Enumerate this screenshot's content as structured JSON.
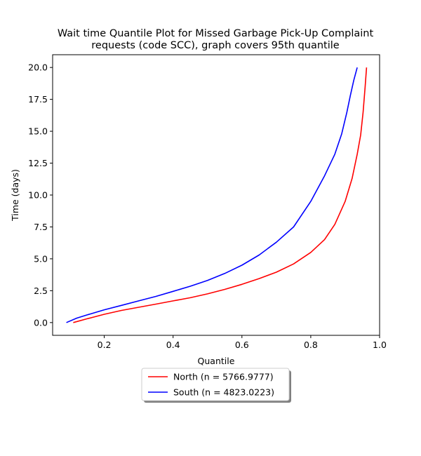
{
  "chart_data": {
    "type": "line",
    "title": "Wait time Quantile Plot for Missed Garbage Pick-Up Complaint",
    "subtitle": "requests (code SCC), graph covers 95th quantile",
    "xlabel": "Quantile",
    "ylabel": "Time (days)",
    "xlim": [
      0.05,
      1.0
    ],
    "ylim": [
      -1.0,
      21.0
    ],
    "xticks": [
      0.2,
      0.4,
      0.6,
      0.8,
      1.0
    ],
    "xtick_labels": [
      "0.2",
      "0.4",
      "0.6",
      "0.8",
      "1.0"
    ],
    "yticks": [
      0.0,
      2.5,
      5.0,
      7.5,
      10.0,
      12.5,
      15.0,
      17.5,
      20.0
    ],
    "ytick_labels": [
      "0.0",
      "2.5",
      "5.0",
      "7.5",
      "10.0",
      "12.5",
      "15.0",
      "17.5",
      "20.0"
    ],
    "grid": false,
    "legend_position": "below",
    "series": [
      {
        "name": "North (n = 5766.9777)",
        "color": "#ff0000",
        "x": [
          0.11,
          0.15,
          0.2,
          0.25,
          0.3,
          0.35,
          0.4,
          0.45,
          0.5,
          0.55,
          0.6,
          0.65,
          0.7,
          0.75,
          0.8,
          0.84,
          0.87,
          0.9,
          0.92,
          0.935,
          0.945,
          0.952,
          0.958,
          0.962
        ],
        "y": [
          0.0,
          0.3,
          0.65,
          0.95,
          1.2,
          1.45,
          1.7,
          1.95,
          2.25,
          2.6,
          3.0,
          3.45,
          3.95,
          4.6,
          5.5,
          6.5,
          7.7,
          9.5,
          11.3,
          13.2,
          14.7,
          16.5,
          18.5,
          20.0
        ]
      },
      {
        "name": "South (n = 4823.0223)",
        "color": "#0000ff",
        "x": [
          0.09,
          0.12,
          0.15,
          0.2,
          0.25,
          0.3,
          0.35,
          0.4,
          0.45,
          0.5,
          0.55,
          0.6,
          0.65,
          0.7,
          0.75,
          0.8,
          0.84,
          0.87,
          0.89,
          0.905,
          0.915,
          0.925,
          0.935
        ],
        "y": [
          0.0,
          0.35,
          0.6,
          1.0,
          1.35,
          1.7,
          2.05,
          2.45,
          2.85,
          3.3,
          3.85,
          4.5,
          5.3,
          6.3,
          7.5,
          9.5,
          11.5,
          13.2,
          14.8,
          16.5,
          17.8,
          19.0,
          20.0
        ]
      }
    ]
  }
}
